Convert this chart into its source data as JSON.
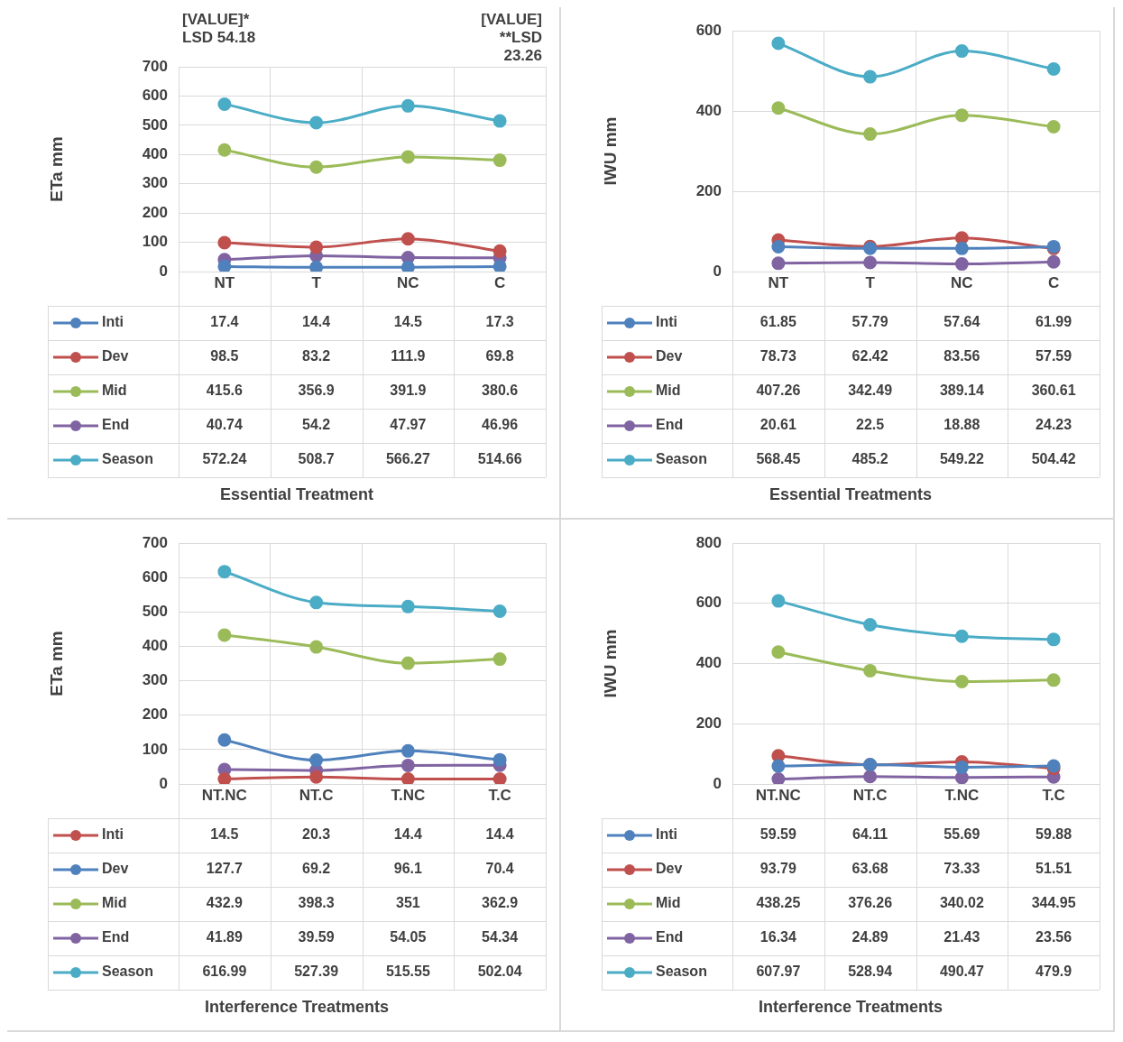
{
  "chart_data": [
    {
      "type": "line",
      "xlabel": "Essential Treatment",
      "ylabel": "ETa mm",
      "categories": [
        "NT",
        "T",
        "NC",
        "C"
      ],
      "ylim": [
        0,
        700
      ],
      "yticks": [
        0,
        100,
        200,
        300,
        400,
        500,
        600,
        700
      ],
      "grid": true,
      "legend": "bottom",
      "marker": "circle",
      "data_labels": true,
      "annotations": [
        "[VALUE]*\nLSD 54.18",
        "[VALUE]\n**LSD\n23.26"
      ],
      "series": [
        {
          "name": "Inti",
          "color": "#4f81bd",
          "values": [
            17.4,
            14.4,
            14.5,
            17.3
          ]
        },
        {
          "name": "Dev",
          "color": "#c0504d",
          "values": [
            98.5,
            83.2,
            111.9,
            69.8
          ]
        },
        {
          "name": "Mid",
          "color": "#9bbb59",
          "values": [
            415.6,
            356.9,
            391.9,
            380.6
          ]
        },
        {
          "name": "End",
          "color": "#8064a2",
          "values": [
            40.74,
            54.2,
            47.97,
            46.96
          ]
        },
        {
          "name": "Season",
          "color": "#4bacc6",
          "values": [
            572.24,
            508.7,
            566.27,
            514.66
          ]
        }
      ]
    },
    {
      "type": "line",
      "xlabel": "Essential Treatments",
      "ylabel": "IWU mm",
      "categories": [
        "NT",
        "T",
        "NC",
        "C"
      ],
      "ylim": [
        0,
        600
      ],
      "yticks": [
        0,
        200,
        400,
        600
      ],
      "grid": true,
      "legend": "bottom",
      "marker": "circle",
      "data_labels": true,
      "series": [
        {
          "name": "Inti",
          "color": "#4f81bd",
          "values": [
            61.85,
            57.79,
            57.64,
            61.99
          ]
        },
        {
          "name": "Dev",
          "color": "#c0504d",
          "values": [
            78.73,
            62.42,
            83.56,
            57.59
          ]
        },
        {
          "name": "Mid",
          "color": "#9bbb59",
          "values": [
            407.26,
            342.49,
            389.14,
            360.61
          ]
        },
        {
          "name": "End",
          "color": "#8064a2",
          "values": [
            20.61,
            22.5,
            18.88,
            24.23
          ]
        },
        {
          "name": "Season",
          "color": "#4bacc6",
          "values": [
            568.45,
            485.2,
            549.22,
            504.42
          ]
        }
      ]
    },
    {
      "type": "line",
      "xlabel": "Interference Treatments",
      "ylabel": "ETa mm",
      "categories": [
        "NT.NC",
        "NT.C",
        "T.NC",
        "T.C"
      ],
      "ylim": [
        0,
        700
      ],
      "yticks": [
        0,
        100,
        200,
        300,
        400,
        500,
        600,
        700
      ],
      "grid": true,
      "legend": "bottom",
      "marker": "circle",
      "data_labels": true,
      "series": [
        {
          "name": "Inti",
          "color": "#c0504d",
          "values": [
            14.5,
            20.3,
            14.4,
            14.4
          ]
        },
        {
          "name": "Dev",
          "color": "#4f81bd",
          "values": [
            127.7,
            69.2,
            96.1,
            70.4
          ]
        },
        {
          "name": "Mid",
          "color": "#9bbb59",
          "values": [
            432.9,
            398.3,
            351,
            362.9
          ]
        },
        {
          "name": "End",
          "color": "#8064a2",
          "values": [
            41.89,
            39.59,
            54.05,
            54.34
          ]
        },
        {
          "name": "Season",
          "color": "#4bacc6",
          "values": [
            616.99,
            527.39,
            515.55,
            502.04
          ]
        }
      ]
    },
    {
      "type": "line",
      "xlabel": "Interference Treatments",
      "ylabel": "IWU mm",
      "categories": [
        "NT.NC",
        "NT.C",
        "T.NC",
        "T.C"
      ],
      "ylim": [
        0,
        800
      ],
      "yticks": [
        0,
        200,
        400,
        600,
        800
      ],
      "grid": true,
      "legend": "bottom",
      "marker": "circle",
      "data_labels": true,
      "series": [
        {
          "name": "Inti",
          "color": "#4f81bd",
          "values": [
            59.59,
            64.11,
            55.69,
            59.88
          ]
        },
        {
          "name": "Dev",
          "color": "#c0504d",
          "values": [
            93.79,
            63.68,
            73.33,
            51.51
          ]
        },
        {
          "name": "Mid",
          "color": "#9bbb59",
          "values": [
            438.25,
            376.26,
            340.02,
            344.95
          ]
        },
        {
          "name": "End",
          "color": "#8064a2",
          "values": [
            16.34,
            24.89,
            21.43,
            23.56
          ]
        },
        {
          "name": "Season",
          "color": "#4bacc6",
          "values": [
            607.97,
            528.94,
            490.47,
            479.9
          ]
        }
      ]
    }
  ]
}
